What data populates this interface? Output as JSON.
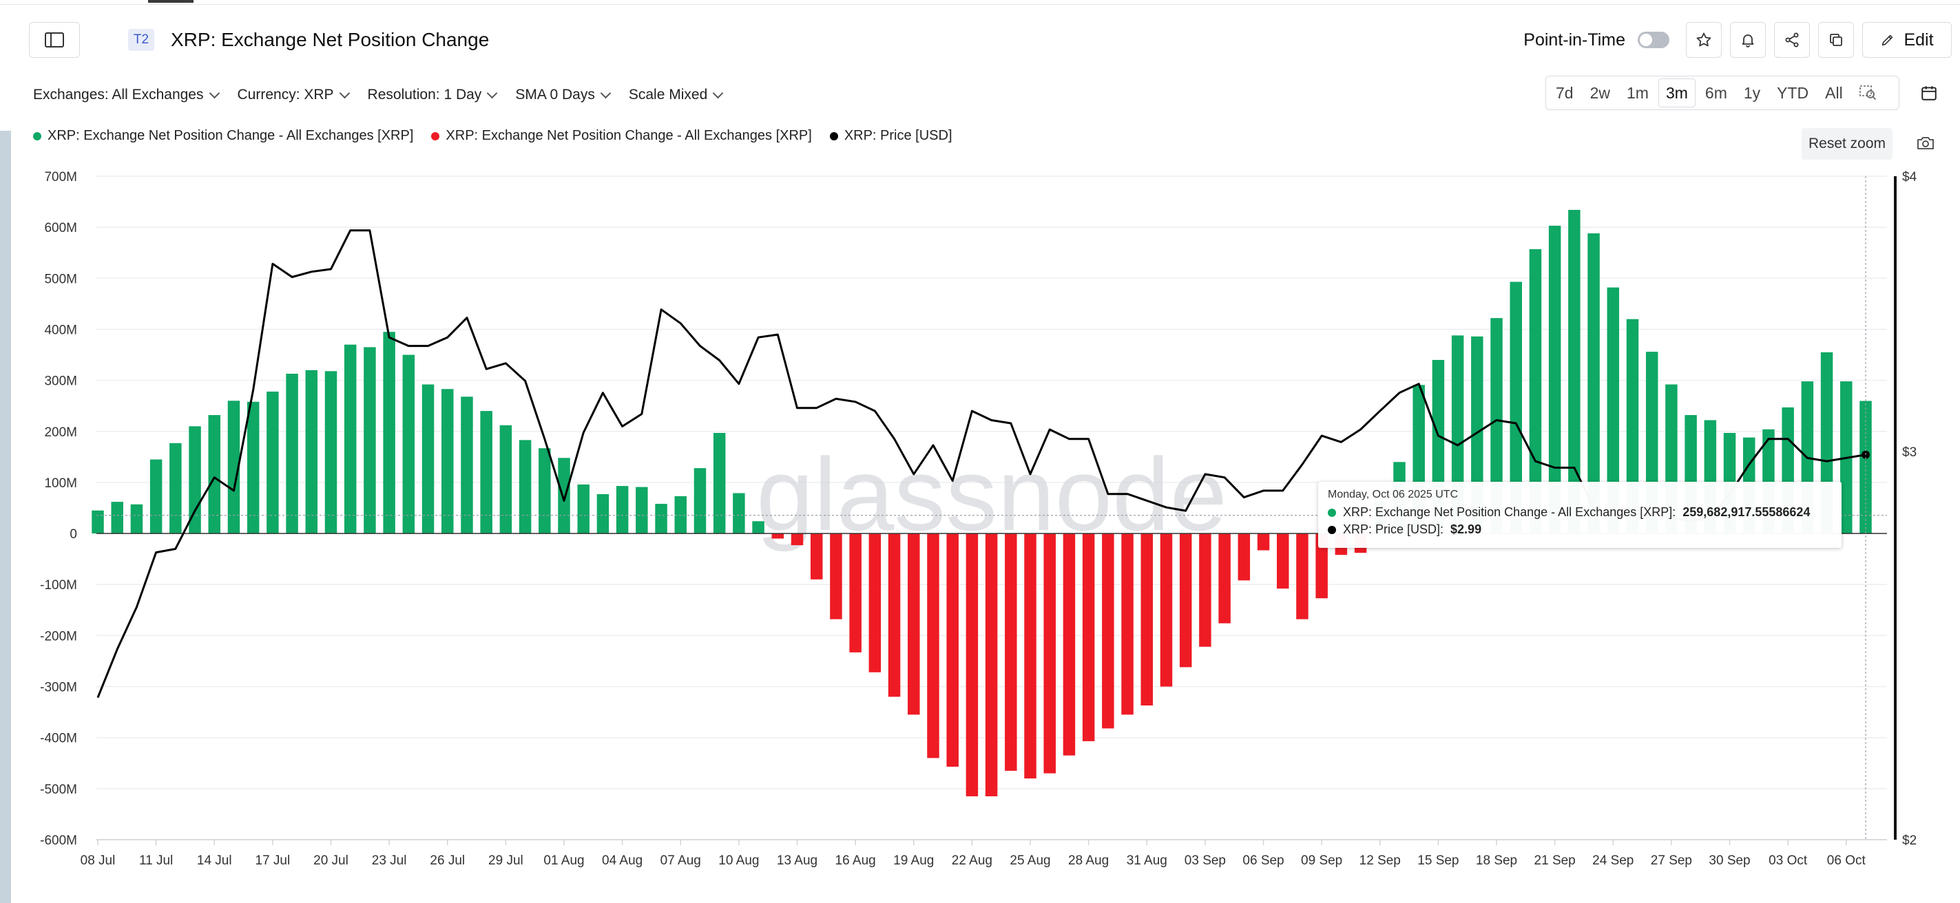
{
  "header": {
    "tier": "T2",
    "title": "XRP: Exchange Net Position Change",
    "point_in_time": "Point-in-Time",
    "edit": "Edit"
  },
  "filters": [
    "Exchanges: All Exchanges",
    "Currency: XRP",
    "Resolution: 1 Day",
    "SMA 0 Days",
    "Scale Mixed"
  ],
  "ranges": [
    "7d",
    "2w",
    "1m",
    "3m",
    "6m",
    "1y",
    "YTD",
    "All"
  ],
  "active_range": "3m",
  "legend": [
    {
      "label": "XRP: Exchange Net Position Change - All Exchanges [XRP]",
      "color": "#0fa865"
    },
    {
      "label": "XRP: Exchange Net Position Change - All Exchanges [XRP]",
      "color": "#ee1b24"
    },
    {
      "label": "XRP: Price [USD]",
      "color": "#000000"
    }
  ],
  "reset_zoom": "Reset zoom",
  "watermark": "glassnode",
  "tooltip": {
    "date": "Monday, Oct 06 2025 UTC",
    "series1_label": "XRP: Exchange Net Position Change - All Exchanges [XRP]:",
    "series1_value": "259,682,917.55586624",
    "series2_label": "XRP: Price [USD]:",
    "series2_value": "$2.99"
  },
  "colors": {
    "positive": "#0fa865",
    "negative": "#ee1b24",
    "price": "#000000"
  },
  "chart_data": {
    "type": "bar",
    "title": "XRP: Exchange Net Position Change",
    "x_tick_labels": [
      "08 Jul",
      "11 Jul",
      "14 Jul",
      "17 Jul",
      "20 Jul",
      "23 Jul",
      "26 Jul",
      "29 Jul",
      "01 Aug",
      "04 Aug",
      "07 Aug",
      "10 Aug",
      "13 Aug",
      "16 Aug",
      "19 Aug",
      "22 Aug",
      "25 Aug",
      "28 Aug",
      "31 Aug",
      "03 Sep",
      "06 Sep",
      "09 Sep",
      "12 Sep",
      "15 Sep",
      "18 Sep",
      "21 Sep",
      "24 Sep",
      "27 Sep",
      "30 Sep",
      "03 Oct",
      "06 Oct"
    ],
    "y_left_ticks": [
      "700M",
      "600M",
      "500M",
      "400M",
      "300M",
      "200M",
      "100M",
      "0",
      "-100M",
      "-200M",
      "-300M",
      "-400M",
      "-500M",
      "-600M"
    ],
    "y_left_range": [
      -600000000,
      700000000
    ],
    "y_right_ticks": [
      "$4",
      "$3",
      "$2"
    ],
    "y_right_range": [
      2,
      4
    ],
    "y_right_scale": "log",
    "x_start": "2025-07-08",
    "x_end": "2025-10-06",
    "series": [
      {
        "name": "XRP: Exchange Net Position Change - All Exchanges [XRP]",
        "kind": "bar",
        "unit": "XRP",
        "values": [
          45000000,
          62000000,
          57000000,
          145000000,
          177000000,
          210000000,
          232000000,
          260000000,
          258000000,
          278000000,
          313000000,
          320000000,
          318000000,
          370000000,
          365000000,
          395000000,
          350000000,
          292000000,
          283000000,
          268000000,
          240000000,
          212000000,
          183000000,
          167000000,
          148000000,
          96000000,
          77000000,
          93000000,
          91000000,
          58000000,
          73000000,
          128000000,
          197000000,
          79000000,
          24000000,
          -10000000,
          -23000000,
          -90000000,
          -168000000,
          -233000000,
          -272000000,
          -320000000,
          -355000000,
          -440000000,
          -457000000,
          -515000000,
          -515000000,
          -465000000,
          -480000000,
          -470000000,
          -435000000,
          -407000000,
          -382000000,
          -355000000,
          -337000000,
          -300000000,
          -262000000,
          -222000000,
          -176000000,
          -92000000,
          -33000000,
          -108000000,
          -168000000,
          -127000000,
          -42000000,
          -38000000,
          62000000,
          140000000,
          291000000,
          340000000,
          388000000,
          386000000,
          422000000,
          493000000,
          557000000,
          603000000,
          634000000,
          588000000,
          482000000,
          420000000,
          356000000,
          292000000,
          232000000,
          222000000,
          197000000,
          188000000,
          204000000,
          247000000,
          298000000,
          355000000,
          298000000,
          259682917.56
        ]
      },
      {
        "name": "XRP: Price [USD]",
        "kind": "line",
        "unit": "USD",
        "values": [
          2.32,
          2.44,
          2.55,
          2.7,
          2.71,
          2.82,
          2.92,
          2.88,
          3.2,
          3.65,
          3.6,
          3.62,
          3.63,
          3.78,
          3.78,
          3.38,
          3.35,
          3.35,
          3.38,
          3.45,
          3.27,
          3.29,
          3.23,
          3.04,
          2.85,
          3.06,
          3.19,
          3.08,
          3.12,
          3.48,
          3.43,
          3.35,
          3.3,
          3.22,
          3.38,
          3.39,
          3.14,
          3.14,
          3.17,
          3.16,
          3.13,
          3.04,
          2.93,
          3.02,
          2.91,
          3.13,
          3.1,
          3.09,
          2.93,
          3.07,
          3.04,
          3.04,
          2.87,
          2.87,
          2.85,
          2.83,
          2.82,
          2.93,
          2.92,
          2.86,
          2.88,
          2.88,
          2.96,
          3.05,
          3.03,
          3.07,
          3.13,
          3.19,
          3.22,
          3.05,
          3.02,
          3.06,
          3.1,
          3.09,
          2.97,
          2.95,
          2.95,
          2.83,
          2.81,
          2.81,
          2.81,
          2.8,
          2.79,
          2.8,
          2.87,
          2.96,
          3.04,
          3.04,
          2.98,
          2.97,
          2.98,
          2.99
        ]
      }
    ],
    "grid": true,
    "legend_position": "top-left"
  }
}
